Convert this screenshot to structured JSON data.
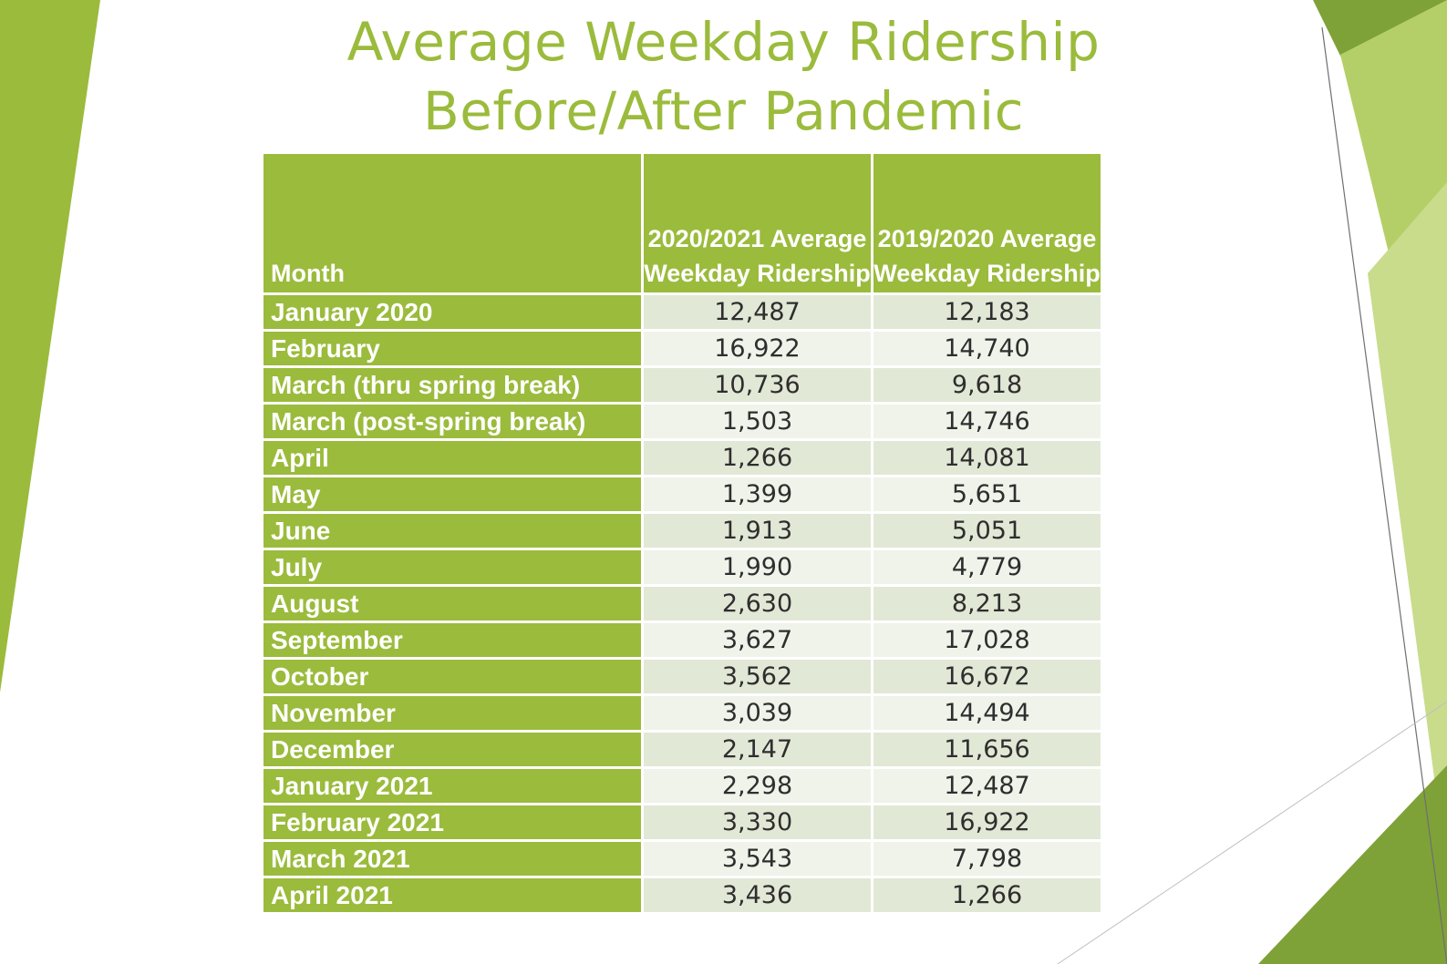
{
  "slide": {
    "title_line1": "Average Weekday Ridership",
    "title_line2": "Before/After Pandemic"
  },
  "colors": {
    "accent_green": "#9bbb3c",
    "dark_green": "#7ea237",
    "light_green": "#c2d87e",
    "row_shade_a": "#e2e8d6",
    "row_shade_b": "#eff3ea"
  },
  "table": {
    "headers": [
      "Month",
      "2020/2021 Average Weekday Ridership",
      "2019/2020 Average Weekday Ridership"
    ],
    "rows": [
      [
        "January 2020",
        "12,487",
        "12,183"
      ],
      [
        "February",
        "16,922",
        "14,740"
      ],
      [
        "March (thru spring break)",
        "10,736",
        "9,618"
      ],
      [
        "March (post-spring break)",
        "1,503",
        "14,746"
      ],
      [
        "April",
        "1,266",
        "14,081"
      ],
      [
        "May",
        "1,399",
        "5,651"
      ],
      [
        "June",
        "1,913",
        "5,051"
      ],
      [
        "July",
        "1,990",
        "4,779"
      ],
      [
        "August",
        "2,630",
        "8,213"
      ],
      [
        "September",
        "3,627",
        "17,028"
      ],
      [
        "October",
        "3,562",
        "16,672"
      ],
      [
        "November",
        "3,039",
        "14,494"
      ],
      [
        "December",
        "2,147",
        "11,656"
      ],
      [
        "January 2021",
        "2,298",
        "12,487"
      ],
      [
        "February 2021",
        "3,330",
        "16,922"
      ],
      [
        "March 2021",
        "3,543",
        "7,798"
      ],
      [
        "April 2021",
        "3,436",
        "1,266"
      ]
    ]
  }
}
